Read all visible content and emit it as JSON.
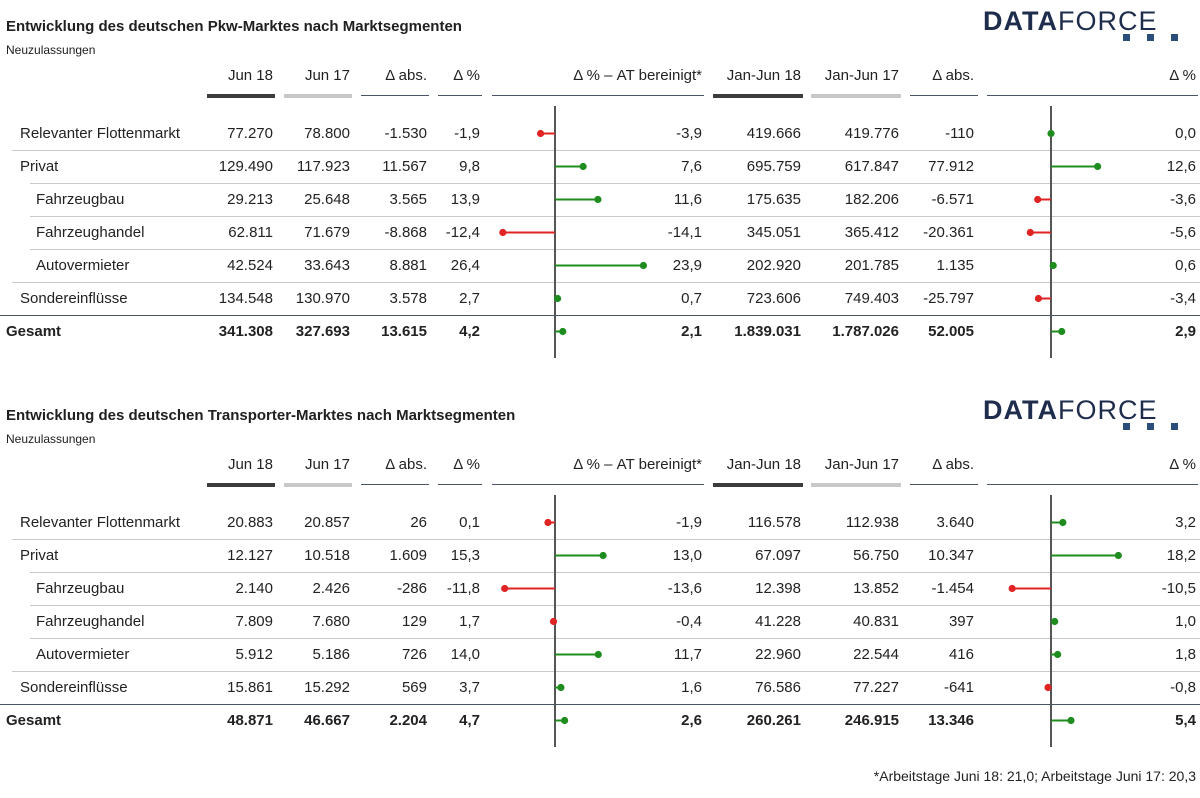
{
  "colors": {
    "positive": "#1e8c1e",
    "negative": "#e02424",
    "axis": "#555555",
    "logo": "#1f2d4d",
    "logo_squares": "#2a4d7a"
  },
  "logo": {
    "bold": "DATA",
    "light": "FORCE"
  },
  "footnote": "*Arbeitstage Juni 18: 21,0; Arbeitstage Juni 17: 20,3",
  "chart_data": [
    {
      "type": "table",
      "title": "Entwicklung des deutschen Pkw-Marktes nach Marktsegmenten",
      "subtitle": "Neuzulassungen",
      "columns": [
        "Jun 18",
        "Jun 17",
        "Δ abs.",
        "Δ %",
        "Δ % – AT bereinigt*",
        "Jan-Jun 18",
        "Jan-Jun 17",
        "Δ abs.",
        "Δ %"
      ],
      "rows": [
        {
          "label": "Relevanter Flottenmarkt",
          "indent": 0,
          "jun18": "77.270",
          "jun17": "78.800",
          "abs": "-1.530",
          "pct": "-1,9",
          "at_label": "-3,9",
          "at_value": -3.9,
          "ytd18": "419.666",
          "ytd17": "419.776",
          "ytd_abs": "-110",
          "ytd_label": "0,0",
          "ytd_value": 0.0
        },
        {
          "label": "Privat",
          "indent": 0,
          "jun18": "129.490",
          "jun17": "117.923",
          "abs": "11.567",
          "pct": "9,8",
          "at_label": "7,6",
          "at_value": 7.6,
          "ytd18": "695.759",
          "ytd17": "617.847",
          "ytd_abs": "77.912",
          "ytd_label": "12,6",
          "ytd_value": 12.6
        },
        {
          "label": "Fahrzeugbau",
          "indent": 1,
          "jun18": "29.213",
          "jun17": "25.648",
          "abs": "3.565",
          "pct": "13,9",
          "at_label": "11,6",
          "at_value": 11.6,
          "ytd18": "175.635",
          "ytd17": "182.206",
          "ytd_abs": "-6.571",
          "ytd_label": "-3,6",
          "ytd_value": -3.6
        },
        {
          "label": "Fahrzeughandel",
          "indent": 1,
          "jun18": "62.811",
          "jun17": "71.679",
          "abs": "-8.868",
          "pct": "-12,4",
          "at_label": "-14,1",
          "at_value": -14.1,
          "ytd18": "345.051",
          "ytd17": "365.412",
          "ytd_abs": "-20.361",
          "ytd_label": "-5,6",
          "ytd_value": -5.6
        },
        {
          "label": "Autovermieter",
          "indent": 1,
          "jun18": "42.524",
          "jun17": "33.643",
          "abs": "8.881",
          "pct": "26,4",
          "at_label": "23,9",
          "at_value": 23.9,
          "ytd18": "202.920",
          "ytd17": "201.785",
          "ytd_abs": "1.135",
          "ytd_label": "0,6",
          "ytd_value": 0.6
        },
        {
          "label": "Sondereinflüsse",
          "indent": 0,
          "jun18": "134.548",
          "jun17": "130.970",
          "abs": "3.578",
          "pct": "2,7",
          "at_label": "0,7",
          "at_value": 0.7,
          "ytd18": "723.606",
          "ytd17": "749.403",
          "ytd_abs": "-25.797",
          "ytd_label": "-3,4",
          "ytd_value": -3.4
        },
        {
          "label": "Gesamt",
          "indent": 0,
          "total": true,
          "jun18": "341.308",
          "jun17": "327.693",
          "abs": "13.615",
          "pct": "4,2",
          "at_label": "2,1",
          "at_value": 2.1,
          "ytd18": "1.839.031",
          "ytd17": "1.787.026",
          "ytd_abs": "52.005",
          "ytd_label": "2,9",
          "ytd_value": 2.9
        }
      ]
    },
    {
      "type": "table",
      "title": "Entwicklung des deutschen Transporter-Marktes nach Marktsegmenten",
      "subtitle": "Neuzulassungen",
      "columns": [
        "Jun 18",
        "Jun 17",
        "Δ abs.",
        "Δ %",
        "Δ % – AT bereinigt*",
        "Jan-Jun 18",
        "Jan-Jun 17",
        "Δ abs.",
        "Δ %"
      ],
      "rows": [
        {
          "label": "Relevanter Flottenmarkt",
          "indent": 0,
          "jun18": "20.883",
          "jun17": "20.857",
          "abs": "26",
          "pct": "0,1",
          "at_label": "-1,9",
          "at_value": -1.9,
          "ytd18": "116.578",
          "ytd17": "112.938",
          "ytd_abs": "3.640",
          "ytd_label": "3,2",
          "ytd_value": 3.2
        },
        {
          "label": "Privat",
          "indent": 0,
          "jun18": "12.127",
          "jun17": "10.518",
          "abs": "1.609",
          "pct": "15,3",
          "at_label": "13,0",
          "at_value": 13.0,
          "ytd18": "67.097",
          "ytd17": "56.750",
          "ytd_abs": "10.347",
          "ytd_label": "18,2",
          "ytd_value": 18.2
        },
        {
          "label": "Fahrzeugbau",
          "indent": 1,
          "jun18": "2.140",
          "jun17": "2.426",
          "abs": "-286",
          "pct": "-11,8",
          "at_label": "-13,6",
          "at_value": -13.6,
          "ytd18": "12.398",
          "ytd17": "13.852",
          "ytd_abs": "-1.454",
          "ytd_label": "-10,5",
          "ytd_value": -10.5
        },
        {
          "label": "Fahrzeughandel",
          "indent": 1,
          "jun18": "7.809",
          "jun17": "7.680",
          "abs": "129",
          "pct": "1,7",
          "at_label": "-0,4",
          "at_value": -0.4,
          "ytd18": "41.228",
          "ytd17": "40.831",
          "ytd_abs": "397",
          "ytd_label": "1,0",
          "ytd_value": 1.0
        },
        {
          "label": "Autovermieter",
          "indent": 1,
          "jun18": "5.912",
          "jun17": "5.186",
          "abs": "726",
          "pct": "14,0",
          "at_label": "11,7",
          "at_value": 11.7,
          "ytd18": "22.960",
          "ytd17": "22.544",
          "ytd_abs": "416",
          "ytd_label": "1,8",
          "ytd_value": 1.8
        },
        {
          "label": "Sondereinflüsse",
          "indent": 0,
          "jun18": "15.861",
          "jun17": "15.292",
          "abs": "569",
          "pct": "3,7",
          "at_label": "1,6",
          "at_value": 1.6,
          "ytd18": "76.586",
          "ytd17": "77.227",
          "ytd_abs": "-641",
          "ytd_label": "-0,8",
          "ytd_value": -0.8
        },
        {
          "label": "Gesamt",
          "indent": 0,
          "total": true,
          "jun18": "48.871",
          "jun17": "46.667",
          "abs": "2.204",
          "pct": "4,7",
          "at_label": "2,6",
          "at_value": 2.6,
          "ytd18": "260.261",
          "ytd17": "246.915",
          "ytd_abs": "13.346",
          "ytd_label": "5,4",
          "ytd_value": 5.4
        }
      ]
    }
  ]
}
